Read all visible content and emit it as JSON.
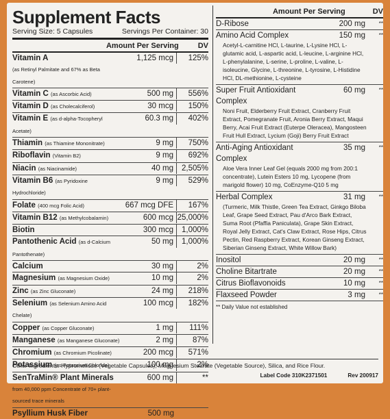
{
  "panel": {
    "title": "Supplement Facts",
    "serving_size": "Serving Size: 5 Capsules",
    "servings_per_container": "Servings Per Container: 30",
    "amount_header": "Amount Per Serving",
    "dv_header": "DV",
    "nutrients": [
      {
        "name": "Vitamin A",
        "note": "(as Retinyl Palmitate and 67% as Beta Carotene)",
        "amount": "1,125 mcg",
        "dv": "125%"
      },
      {
        "name": "Vitamin C",
        "note": "(as Ascorbic Acid)",
        "amount": "500 mg",
        "dv": "556%"
      },
      {
        "name": "Vitamin D",
        "note": "(as Cholecalciferol)",
        "amount": "30 mcg",
        "dv": "150%"
      },
      {
        "name": "Vitamin E",
        "note": "(as d-alpha-Tocopheryl Acetate)",
        "amount": "60.3 mg",
        "dv": "402%"
      },
      {
        "name": "Thiamin",
        "note": "(as Thiamine Mononitrate)",
        "amount": "9 mg",
        "dv": "750%"
      },
      {
        "name": "Riboflavin",
        "note": "(Vitamin B2)",
        "amount": "9 mg",
        "dv": "692%"
      },
      {
        "name": "Niacin",
        "note": "(as Niacinamide)",
        "amount": "40 mg",
        "dv": "2,505%"
      },
      {
        "name": "Vitamin B6",
        "note": "(as Pyridoxine Hydrochloride)",
        "amount": "9 mg",
        "dv": "529%"
      },
      {
        "name": "Folate",
        "note": "(400 mcg Folic Acid)",
        "amount": "667 mcg DFE",
        "dv": "167%"
      },
      {
        "name": "Vitamin B12",
        "note": "(as Methylcobalamin)",
        "amount": "600 mcg",
        "dv": "25,000%"
      },
      {
        "name": "Biotin",
        "amount": "300 mcg",
        "dv": "1,000%"
      },
      {
        "name": "Pantothenic Acid",
        "note": "(as d-Calcium Pantothenate)",
        "amount": "50 mg",
        "dv": "1,000%"
      },
      {
        "name": "Calcium",
        "amount": "30 mg",
        "dv": "2%"
      },
      {
        "name": "Magnesium",
        "note": "(as Magnesium Oxide)",
        "amount": "10 mg",
        "dv": "2%"
      },
      {
        "name": "Zinc",
        "note": "(as Zinc Gluconate)",
        "amount": "24 mg",
        "dv": "218%"
      },
      {
        "name": "Selenium",
        "note": "(as Selenium Amino Acid Chelate)",
        "amount": "100 mcg",
        "dv": "182%"
      },
      {
        "name": "Copper",
        "note": "(as Copper Gluconate)",
        "amount": "1 mg",
        "dv": "111%"
      },
      {
        "name": "Manganese",
        "note": "(as Manganese Gluconate)",
        "amount": "2 mg",
        "dv": "87%"
      },
      {
        "name": "Chromium",
        "note": "(as Chromium Picolinate)",
        "amount": "200 mcg",
        "dv": "571%"
      },
      {
        "name": "Potassium",
        "note": "(as Potassium Chloride)",
        "amount": "100 mg",
        "dv": "2%"
      },
      {
        "name": "SenTraMin® Plant Minerals",
        "note": "from 40,000 ppm Concentrate of 70+ plant-sourced trace minerals",
        "amount": "600 mg",
        "dv": "**"
      },
      {
        "name": "Psyllium Husk Fiber",
        "amount": "500 mg"
      }
    ]
  },
  "right": {
    "amount_header": "Amount Per Serving",
    "dv_header": "DV",
    "items": [
      {
        "name": "D-Ribose",
        "amount": "200 mg",
        "dv": "**"
      },
      {
        "name": "Amino Acid Complex",
        "amount": "150 mg",
        "dv": "**",
        "description": "Acetyl-L-carnitine HCl, L-taurine, L-Lysine HCl, L-glutamic acid, L-aspartic acid, L-leucine, L-arginine HCl, L-phenylalanine, L-serine, L-proline, L-valine, L-isoleucine, Glycine, L-threonine, L-tyrosine, L-Histidine HCl, DL-methionine, L-cysteine"
      },
      {
        "name": "Super Fruit Antioxidant Complex",
        "amount": "60 mg",
        "dv": "**",
        "description": "Noni Fruit, Elderberry Fruit Extract, Cranberry Fruit Extract, Pomegranate Fruit, Aronia Berry Extract, Maqui Berry, Acai Fruit Extract (Euterpe Oleracea), Mangosteen Fruit Hull Extract, Lycium (Goji) Berry Fruit Extract"
      },
      {
        "name": "Anti-Aging Antioxidant Complex",
        "amount": "35 mg",
        "dv": "**",
        "description": "Aloe Vera Inner Leaf Gel (equals 2000 mg from 200:1 concentrate), Lutein Esters 10 mg, Lycopene (from marigold flower) 10 mg, CoEnzyme-Q10 5 mg"
      },
      {
        "name": "Herbal Complex",
        "amount": "31 mg",
        "dv": "**",
        "description": "(Turmeric, Milk Thistle, Green Tea Extract, Ginkgo Biloba Leaf, Grape Seed Extract, Pau d'Arco Bark Extract, Suma Root (Pfaffia Paniculata), Grape Skin Extract, Royal Jelly Extract, Cat's Claw Extract, Rose Hips, Citrus Pectin, Red Raspberry Extract, Korean Ginseng Extract, Siberian Ginseng Extract, White Willow Bark)"
      },
      {
        "name": "Inositol",
        "amount": "20 mg",
        "dv": "**"
      },
      {
        "name": "Choline Bitartrate",
        "amount": "20 mg",
        "dv": "**"
      },
      {
        "name": "Citrus Bioflavonoids",
        "amount": "10 mg",
        "dv": "**"
      },
      {
        "name": "Flaxseed Powder",
        "amount": "3 mg",
        "dv": "**"
      }
    ],
    "footnote": "** Daily Value not established"
  },
  "other_ingredients": "Other Ingredients: Hypromellose (Vegetable Capsules), Magnesium Stearate (Vegetable Source), Silica, and Rice Flour.",
  "label_code": "Label Code 310K2371501",
  "revision": "Rev 200917"
}
